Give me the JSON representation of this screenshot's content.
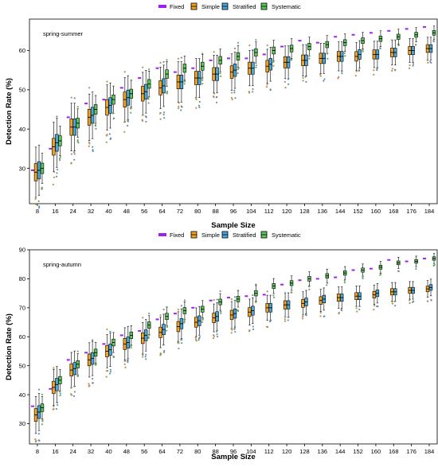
{
  "legend": {
    "entries": [
      {
        "name": "Fixed",
        "color": "#a020f0"
      },
      {
        "name": "Simple",
        "color": "#f4a020"
      },
      {
        "name": "Stratified",
        "color": "#4aa8d8"
      },
      {
        "name": "Systematic",
        "color": "#5cc85c"
      }
    ]
  },
  "chart_data": [
    {
      "type": "box",
      "title": "spring-summer",
      "xlabel": "Sample Size",
      "ylabel": "Detection Rate (%)",
      "ylim": [
        21,
        68
      ],
      "yticks": [
        30,
        40,
        50,
        60
      ],
      "categories": [
        "8",
        "16",
        "24",
        "32",
        "40",
        "48",
        "56",
        "64",
        "72",
        "80",
        "88",
        "96",
        "104",
        "112",
        "120",
        "128",
        "136",
        "144",
        "152",
        "160",
        "168",
        "176",
        "184"
      ],
      "series": [
        {
          "name": "Fixed",
          "values": [
            29.5,
            35,
            43,
            46.5,
            47.5,
            50.5,
            53,
            55.5,
            54.5,
            55.5,
            57.5,
            58,
            58,
            59,
            61,
            62.5,
            62,
            63.5,
            64,
            64.5,
            65,
            65.5,
            66
          ]
        },
        {
          "name": "Simple",
          "values": [
            29,
            35.5,
            40.5,
            43,
            45.5,
            47.5,
            49,
            50.5,
            52,
            53,
            54,
            54.5,
            55.5,
            56,
            57,
            57.5,
            58,
            58.5,
            58.5,
            59,
            59.5,
            60,
            60.5
          ]
        },
        {
          "name": "Stratified",
          "values": [
            29.5,
            36.5,
            40.5,
            43.5,
            46,
            48,
            49.5,
            51,
            52,
            53,
            54,
            55,
            55.5,
            56.5,
            57,
            57.5,
            58,
            58.5,
            59,
            59,
            59.5,
            60,
            60.5
          ]
        },
        {
          "name": "Systematic",
          "values": [
            30,
            37,
            41.5,
            45,
            47.5,
            49,
            51.5,
            54,
            55.5,
            56,
            57.5,
            58.5,
            59.5,
            60,
            60.5,
            61,
            61.5,
            62,
            62.5,
            63,
            63.5,
            64,
            64.5
          ]
        }
      ]
    },
    {
      "type": "box",
      "title": "spring-autumn",
      "xlabel": "Sample Size",
      "ylabel": "Detection Rate (%)",
      "ylim": [
        23,
        90
      ],
      "yticks": [
        30,
        40,
        50,
        60,
        70,
        80,
        90
      ],
      "categories": [
        "8",
        "16",
        "24",
        "32",
        "40",
        "48",
        "56",
        "64",
        "72",
        "80",
        "88",
        "96",
        "104",
        "112",
        "120",
        "128",
        "136",
        "144",
        "152",
        "160",
        "168",
        "176",
        "184"
      ],
      "series": [
        {
          "name": "Fixed",
          "values": [
            36,
            42,
            52,
            54.5,
            57.5,
            60.5,
            62,
            66,
            68,
            70,
            72.5,
            73.5,
            74,
            74.5,
            78,
            79.5,
            80,
            80.5,
            83,
            83.5,
            86.5,
            86,
            87
          ]
        },
        {
          "name": "Simple",
          "values": [
            33,
            42.5,
            48.5,
            52,
            55,
            57.5,
            59.5,
            61.5,
            63.5,
            65,
            66.5,
            67.5,
            68.5,
            70,
            71,
            71.5,
            72.5,
            73.5,
            74,
            74.5,
            75.5,
            76,
            76.5
          ]
        },
        {
          "name": "Stratified",
          "values": [
            34,
            43.5,
            49,
            52.5,
            55.5,
            58,
            60.5,
            62.5,
            64.5,
            65.5,
            67,
            68,
            69,
            70,
            71,
            72,
            73,
            73.5,
            74,
            75,
            75.5,
            76,
            77
          ]
        },
        {
          "name": "Systematic",
          "values": [
            35.5,
            45,
            50.5,
            54.5,
            58,
            60.5,
            64,
            67,
            69,
            69.5,
            72,
            73,
            75,
            77.5,
            78.5,
            80,
            81,
            82,
            83,
            84,
            85.5,
            86,
            87
          ]
        }
      ]
    }
  ]
}
